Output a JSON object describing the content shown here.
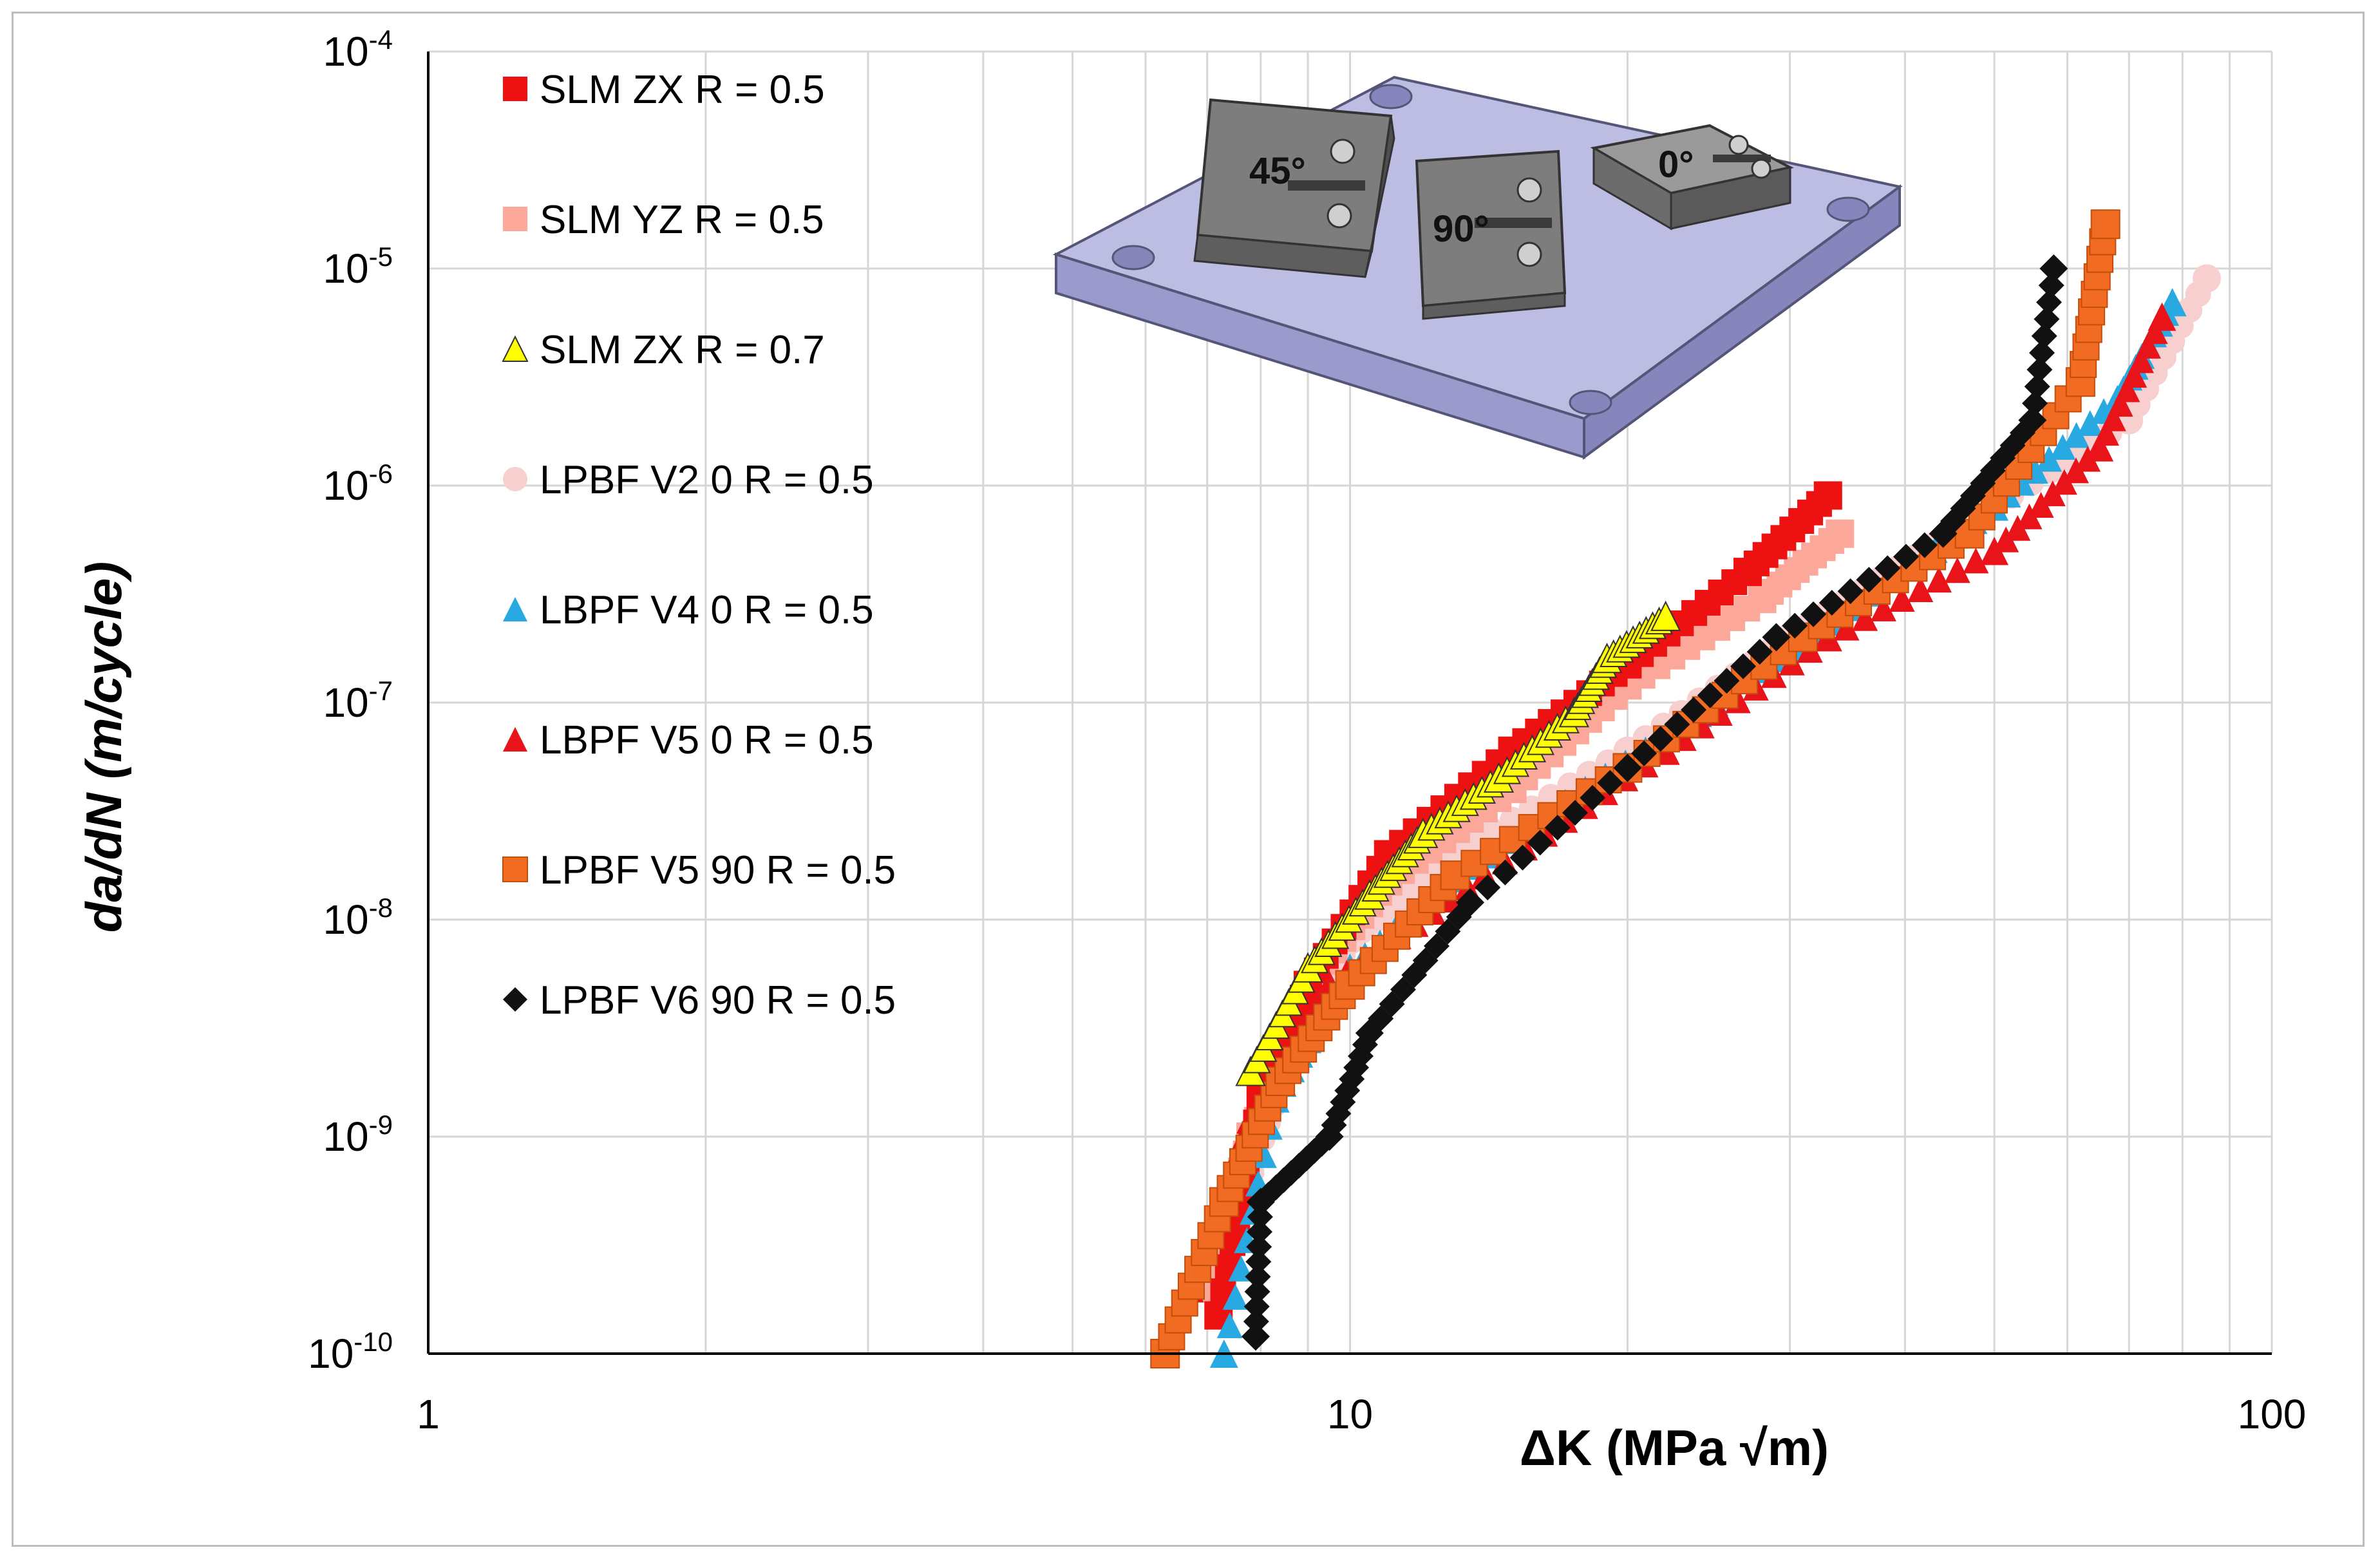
{
  "chart_data": {
    "type": "scatter",
    "xscale": "log",
    "yscale": "log",
    "xlabel": "ΔK (MPa √m)",
    "ylabel": "da/dN (m/cycle)",
    "xlim": [
      1,
      100
    ],
    "ylim": [
      1e-10,
      0.0001
    ],
    "x_ticks": [
      "1",
      "10",
      "100"
    ],
    "y_ticks": [
      {
        "base": "10",
        "exp": "-10"
      },
      {
        "base": "10",
        "exp": "-9"
      },
      {
        "base": "10",
        "exp": "-8"
      },
      {
        "base": "10",
        "exp": "-7"
      },
      {
        "base": "10",
        "exp": "-6"
      },
      {
        "base": "10",
        "exp": "-5"
      },
      {
        "base": "10",
        "exp": "-4"
      }
    ],
    "grid": true,
    "legend_position": "top-left",
    "inset_labels": [
      "45°",
      "90°",
      "0°"
    ],
    "series": [
      {
        "name": "SLM ZX R = 0.5",
        "marker": "square",
        "color": "#ee1111",
        "stroke": "none",
        "anchors": [
          [
            7.2,
            1.5e-10
          ],
          [
            8.0,
            1.5e-09
          ],
          [
            9.0,
            5e-09
          ],
          [
            11.0,
            2e-08
          ],
          [
            15.0,
            6e-08
          ],
          [
            20.0,
            1.5e-07
          ],
          [
            27.0,
            4e-07
          ],
          [
            33.0,
            9e-07
          ]
        ]
      },
      {
        "name": "SLM YZ R = 0.5",
        "marker": "square",
        "color": "#fba89a",
        "stroke": "none",
        "anchors": [
          [
            7.0,
            2e-10
          ],
          [
            7.8,
            1e-09
          ],
          [
            9.0,
            5e-09
          ],
          [
            11.0,
            1.5e-08
          ],
          [
            15.0,
            4e-08
          ],
          [
            20.0,
            1.2e-07
          ],
          [
            28.0,
            3e-07
          ],
          [
            34.0,
            6e-07
          ]
        ]
      },
      {
        "name": "SLM ZX R = 0.7",
        "marker": "triangle",
        "color": "#ffff00",
        "stroke": "#333333",
        "anchors": [
          [
            7.8,
            2e-09
          ],
          [
            9.0,
            6e-09
          ],
          [
            10.5,
            1.3e-08
          ],
          [
            12.0,
            2.5e-08
          ],
          [
            14.5,
            4.5e-08
          ],
          [
            17.5,
            9e-08
          ],
          [
            19.0,
            1.6e-07
          ],
          [
            22.0,
            2.5e-07
          ]
        ]
      },
      {
        "name": "LPBF V2 0 R = 0.5",
        "marker": "circle",
        "color": "#f7cfcf",
        "stroke": "none",
        "anchors": [
          [
            7.5,
            4e-10
          ],
          [
            8.5,
            2e-09
          ],
          [
            10.0,
            8e-09
          ],
          [
            13.0,
            2e-08
          ],
          [
            20.0,
            6e-08
          ],
          [
            30.0,
            2e-07
          ],
          [
            45.0,
            6e-07
          ],
          [
            70.0,
            2e-06
          ],
          [
            85.0,
            9e-06
          ]
        ]
      },
      {
        "name": "LBPF V4 0 R = 0.5",
        "marker": "triangle",
        "color": "#29a9e1",
        "stroke": "none",
        "anchors": [
          [
            7.3,
            1e-10
          ],
          [
            8.3,
            1.5e-09
          ],
          [
            10.0,
            6e-09
          ],
          [
            14.0,
            2e-08
          ],
          [
            22.0,
            7e-08
          ],
          [
            32.0,
            2e-07
          ],
          [
            50.0,
            8e-07
          ],
          [
            68.0,
            2.5e-06
          ],
          [
            78.0,
            7e-06
          ]
        ]
      },
      {
        "name": "LBPF V5 0 R = 0.5",
        "marker": "triangle",
        "color": "#e8141a",
        "stroke": "none",
        "anchors": [
          [
            6.7,
            2e-10
          ],
          [
            7.8,
            1.2e-09
          ],
          [
            9.5,
            5e-09
          ],
          [
            14.0,
            1.6e-08
          ],
          [
            22.0,
            6e-08
          ],
          [
            33.0,
            2e-07
          ],
          [
            50.0,
            5e-07
          ],
          [
            65.0,
            1.5e-06
          ],
          [
            76.0,
            6e-06
          ]
        ]
      },
      {
        "name": "LPBF V5 90  R = 0.5",
        "marker": "square",
        "color": "#f26b22",
        "stroke": "#c44d0a",
        "anchors": [
          [
            6.3,
            1e-10
          ],
          [
            7.3,
            5e-10
          ],
          [
            8.4,
            1.8e-09
          ],
          [
            10.0,
            5e-09
          ],
          [
            13.0,
            1.6e-08
          ],
          [
            20.0,
            5e-08
          ],
          [
            31.0,
            2e-07
          ],
          [
            47.0,
            6e-07
          ],
          [
            62.0,
            3e-06
          ],
          [
            66.0,
            1.6e-05
          ]
        ]
      },
      {
        "name": "LPBF V6 90 R = 0.5",
        "marker": "diamond",
        "color": "#111111",
        "stroke": "none",
        "anchors": [
          [
            7.9,
            1.2e-10
          ],
          [
            8.0,
            5e-10
          ],
          [
            9.5,
            1e-09
          ],
          [
            10.5,
            3e-09
          ],
          [
            13.5,
            1.2e-08
          ],
          [
            20.0,
            5e-08
          ],
          [
            29.0,
            2e-07
          ],
          [
            44.0,
            6e-07
          ],
          [
            55.0,
            2e-06
          ],
          [
            58.0,
            1e-05
          ]
        ]
      }
    ]
  }
}
